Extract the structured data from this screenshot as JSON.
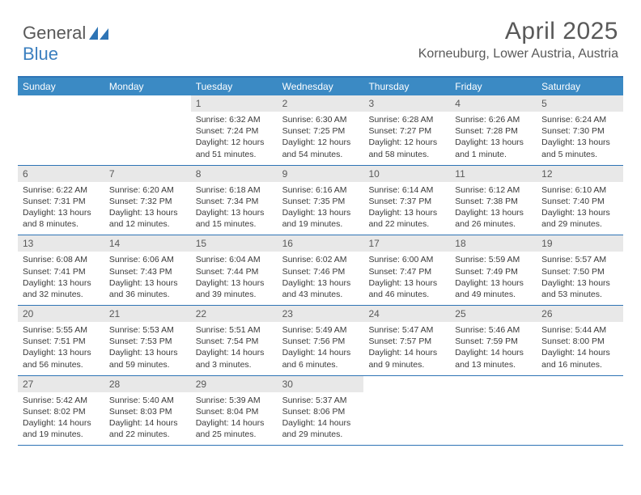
{
  "brand": {
    "word1": "General",
    "word2": "Blue"
  },
  "title": "April 2025",
  "location": "Korneuburg, Lower Austria, Austria",
  "colors": {
    "header_blue": "#3b8ac4",
    "border_blue": "#2e74b5",
    "daynum_bg": "#e8e8e8",
    "text_gray": "#595959",
    "body_text": "#3a3a3a",
    "logo_blue": "#3b7fbf"
  },
  "weekdays": [
    "Sunday",
    "Monday",
    "Tuesday",
    "Wednesday",
    "Thursday",
    "Friday",
    "Saturday"
  ],
  "weeks": [
    [
      {
        "n": "",
        "sunrise": "",
        "sunset": "",
        "daylight": ""
      },
      {
        "n": "",
        "sunrise": "",
        "sunset": "",
        "daylight": ""
      },
      {
        "n": "1",
        "sunrise": "6:32 AM",
        "sunset": "7:24 PM",
        "daylight": "12 hours and 51 minutes."
      },
      {
        "n": "2",
        "sunrise": "6:30 AM",
        "sunset": "7:25 PM",
        "daylight": "12 hours and 54 minutes."
      },
      {
        "n": "3",
        "sunrise": "6:28 AM",
        "sunset": "7:27 PM",
        "daylight": "12 hours and 58 minutes."
      },
      {
        "n": "4",
        "sunrise": "6:26 AM",
        "sunset": "7:28 PM",
        "daylight": "13 hours and 1 minute."
      },
      {
        "n": "5",
        "sunrise": "6:24 AM",
        "sunset": "7:30 PM",
        "daylight": "13 hours and 5 minutes."
      }
    ],
    [
      {
        "n": "6",
        "sunrise": "6:22 AM",
        "sunset": "7:31 PM",
        "daylight": "13 hours and 8 minutes."
      },
      {
        "n": "7",
        "sunrise": "6:20 AM",
        "sunset": "7:32 PM",
        "daylight": "13 hours and 12 minutes."
      },
      {
        "n": "8",
        "sunrise": "6:18 AM",
        "sunset": "7:34 PM",
        "daylight": "13 hours and 15 minutes."
      },
      {
        "n": "9",
        "sunrise": "6:16 AM",
        "sunset": "7:35 PM",
        "daylight": "13 hours and 19 minutes."
      },
      {
        "n": "10",
        "sunrise": "6:14 AM",
        "sunset": "7:37 PM",
        "daylight": "13 hours and 22 minutes."
      },
      {
        "n": "11",
        "sunrise": "6:12 AM",
        "sunset": "7:38 PM",
        "daylight": "13 hours and 26 minutes."
      },
      {
        "n": "12",
        "sunrise": "6:10 AM",
        "sunset": "7:40 PM",
        "daylight": "13 hours and 29 minutes."
      }
    ],
    [
      {
        "n": "13",
        "sunrise": "6:08 AM",
        "sunset": "7:41 PM",
        "daylight": "13 hours and 32 minutes."
      },
      {
        "n": "14",
        "sunrise": "6:06 AM",
        "sunset": "7:43 PM",
        "daylight": "13 hours and 36 minutes."
      },
      {
        "n": "15",
        "sunrise": "6:04 AM",
        "sunset": "7:44 PM",
        "daylight": "13 hours and 39 minutes."
      },
      {
        "n": "16",
        "sunrise": "6:02 AM",
        "sunset": "7:46 PM",
        "daylight": "13 hours and 43 minutes."
      },
      {
        "n": "17",
        "sunrise": "6:00 AM",
        "sunset": "7:47 PM",
        "daylight": "13 hours and 46 minutes."
      },
      {
        "n": "18",
        "sunrise": "5:59 AM",
        "sunset": "7:49 PM",
        "daylight": "13 hours and 49 minutes."
      },
      {
        "n": "19",
        "sunrise": "5:57 AM",
        "sunset": "7:50 PM",
        "daylight": "13 hours and 53 minutes."
      }
    ],
    [
      {
        "n": "20",
        "sunrise": "5:55 AM",
        "sunset": "7:51 PM",
        "daylight": "13 hours and 56 minutes."
      },
      {
        "n": "21",
        "sunrise": "5:53 AM",
        "sunset": "7:53 PM",
        "daylight": "13 hours and 59 minutes."
      },
      {
        "n": "22",
        "sunrise": "5:51 AM",
        "sunset": "7:54 PM",
        "daylight": "14 hours and 3 minutes."
      },
      {
        "n": "23",
        "sunrise": "5:49 AM",
        "sunset": "7:56 PM",
        "daylight": "14 hours and 6 minutes."
      },
      {
        "n": "24",
        "sunrise": "5:47 AM",
        "sunset": "7:57 PM",
        "daylight": "14 hours and 9 minutes."
      },
      {
        "n": "25",
        "sunrise": "5:46 AM",
        "sunset": "7:59 PM",
        "daylight": "14 hours and 13 minutes."
      },
      {
        "n": "26",
        "sunrise": "5:44 AM",
        "sunset": "8:00 PM",
        "daylight": "14 hours and 16 minutes."
      }
    ],
    [
      {
        "n": "27",
        "sunrise": "5:42 AM",
        "sunset": "8:02 PM",
        "daylight": "14 hours and 19 minutes."
      },
      {
        "n": "28",
        "sunrise": "5:40 AM",
        "sunset": "8:03 PM",
        "daylight": "14 hours and 22 minutes."
      },
      {
        "n": "29",
        "sunrise": "5:39 AM",
        "sunset": "8:04 PM",
        "daylight": "14 hours and 25 minutes."
      },
      {
        "n": "30",
        "sunrise": "5:37 AM",
        "sunset": "8:06 PM",
        "daylight": "14 hours and 29 minutes."
      },
      {
        "n": "",
        "sunrise": "",
        "sunset": "",
        "daylight": ""
      },
      {
        "n": "",
        "sunrise": "",
        "sunset": "",
        "daylight": ""
      },
      {
        "n": "",
        "sunrise": "",
        "sunset": "",
        "daylight": ""
      }
    ]
  ],
  "labels": {
    "sunrise": "Sunrise: ",
    "sunset": "Sunset: ",
    "daylight": "Daylight: "
  }
}
